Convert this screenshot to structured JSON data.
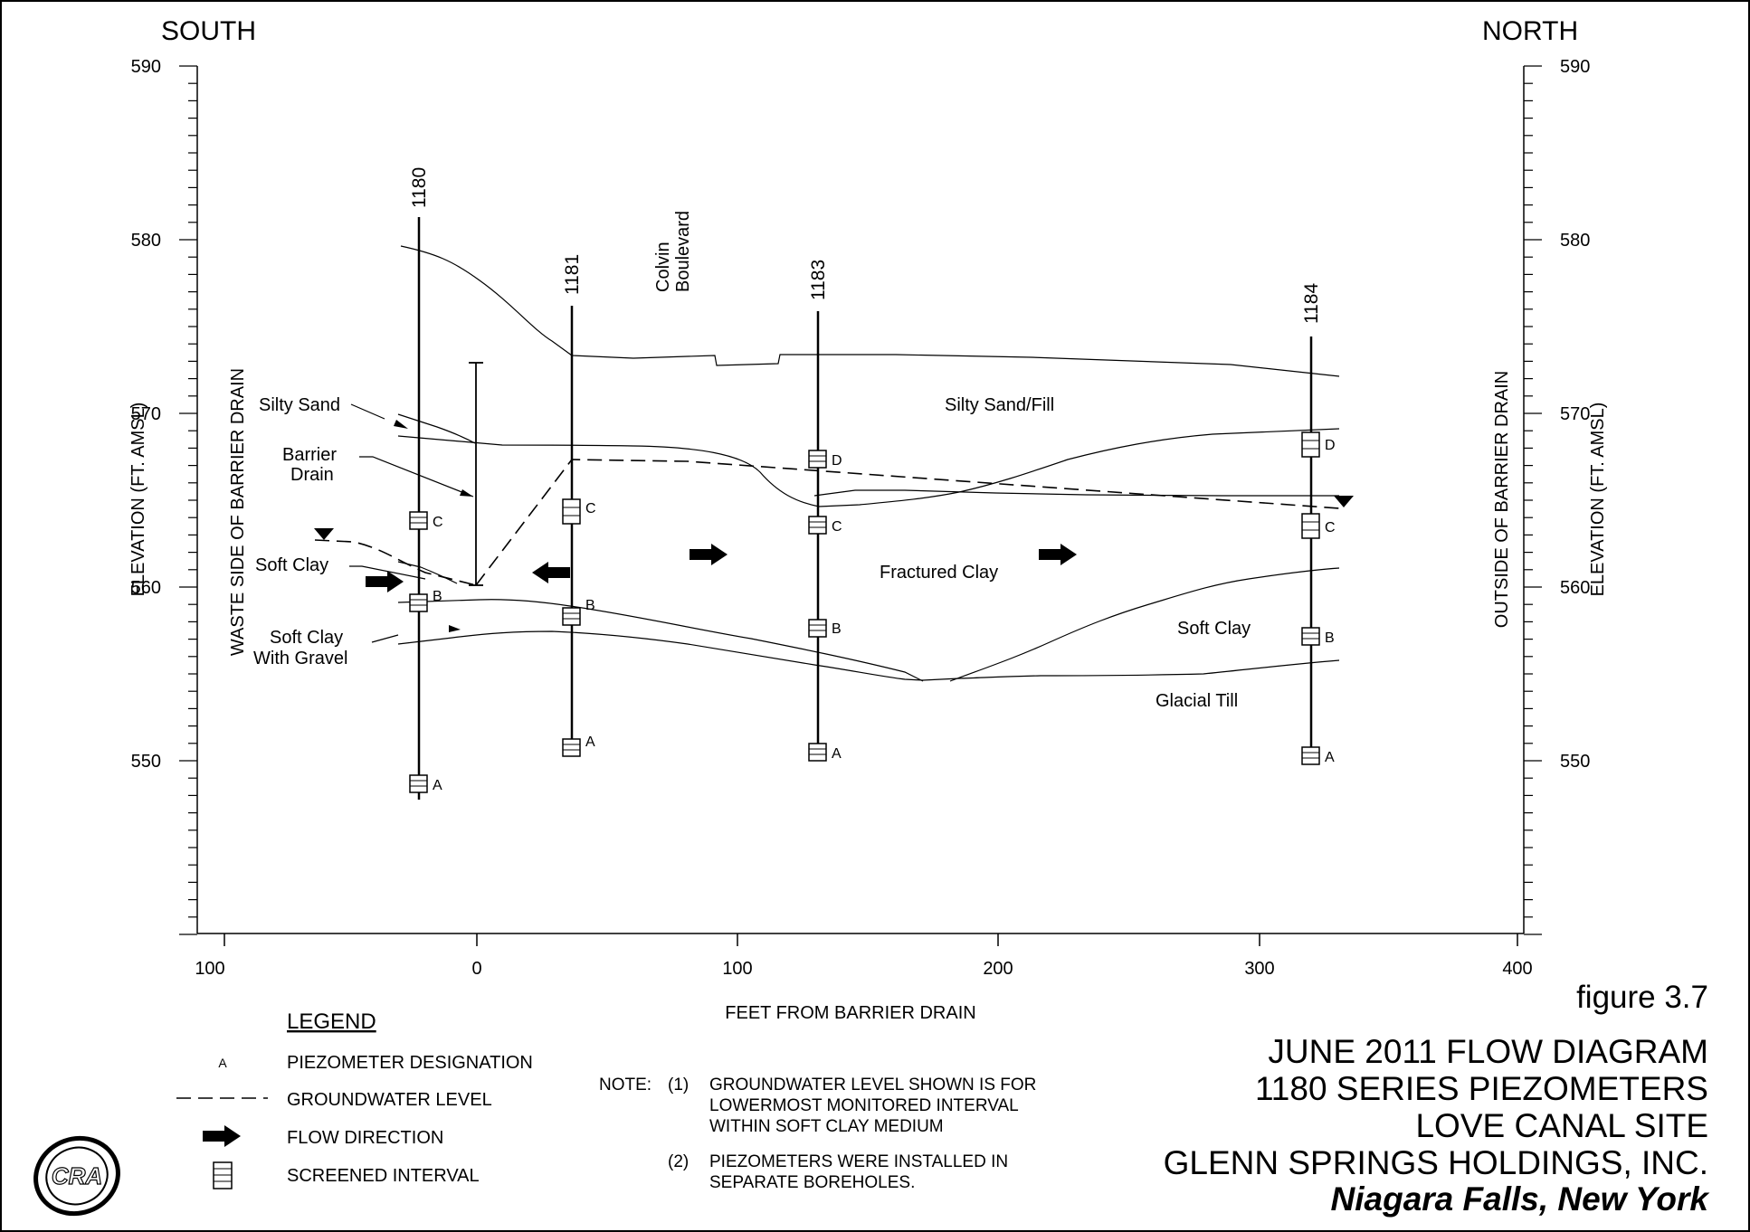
{
  "header": {
    "left_direction": "SOUTH",
    "right_direction": "NORTH"
  },
  "axes": {
    "left_ylabel": "ELEVATION (FT. AMSL)",
    "left_sublabel": "WASTE SIDE OF BARRIER DRAIN",
    "right_ylabel": "ELEVATION (FT. AMSL)",
    "right_sublabel": "OUTSIDE OF BARRIER DRAIN",
    "xlabel": "FEET FROM BARRIER DRAIN",
    "y_ticks": [
      "590",
      "580",
      "570",
      "560",
      "550"
    ],
    "x_ticks": [
      "100",
      "0",
      "100",
      "200",
      "300",
      "400"
    ]
  },
  "piezometers": [
    {
      "id": "1180",
      "screens": [
        "C",
        "B",
        "A"
      ]
    },
    {
      "id": "1181",
      "screens": [
        "C",
        "B",
        "A"
      ]
    },
    {
      "id": "1183",
      "screens": [
        "D",
        "C",
        "B",
        "A"
      ]
    },
    {
      "id": "1184",
      "screens": [
        "D",
        "C",
        "B",
        "A"
      ]
    }
  ],
  "labels": {
    "colvin_1": "Colvin",
    "colvin_2": "Boulevard",
    "silty_sand": "Silty Sand",
    "barrier_1": "Barrier",
    "barrier_2": "Drain",
    "soft_clay_left": "Soft Clay",
    "soft_clay_gravel_1": "Soft Clay",
    "soft_clay_gravel_2": "With Gravel",
    "silty_sand_fill": "Silty Sand/Fill",
    "fractured_clay": "Fractured Clay",
    "soft_clay_right": "Soft Clay",
    "glacial_till": "Glacial Till"
  },
  "legend": {
    "title": "LEGEND",
    "symbol_a": "A",
    "items": [
      "PIEZOMETER DESIGNATION",
      "GROUNDWATER LEVEL",
      "FLOW DIRECTION",
      "SCREENED INTERVAL"
    ]
  },
  "notes": {
    "prefix": "NOTE:",
    "n1": "(1)",
    "n1_lines": [
      "GROUNDWATER LEVEL SHOWN IS FOR",
      "LOWERMOST MONITORED INTERVAL",
      "WITHIN SOFT CLAY MEDIUM"
    ],
    "n2": "(2)",
    "n2_lines": [
      "PIEZOMETERS WERE INSTALLED IN",
      "SEPARATE BOREHOLES."
    ]
  },
  "title_block": {
    "figure": "figure 3.7",
    "lines": [
      "JUNE 2011 FLOW DIAGRAM",
      "1180 SERIES PIEZOMETERS",
      "LOVE CANAL SITE",
      "GLENN SPRINGS HOLDINGS, INC."
    ],
    "location": "Niagara Falls, New York",
    "logo": "CRA"
  }
}
